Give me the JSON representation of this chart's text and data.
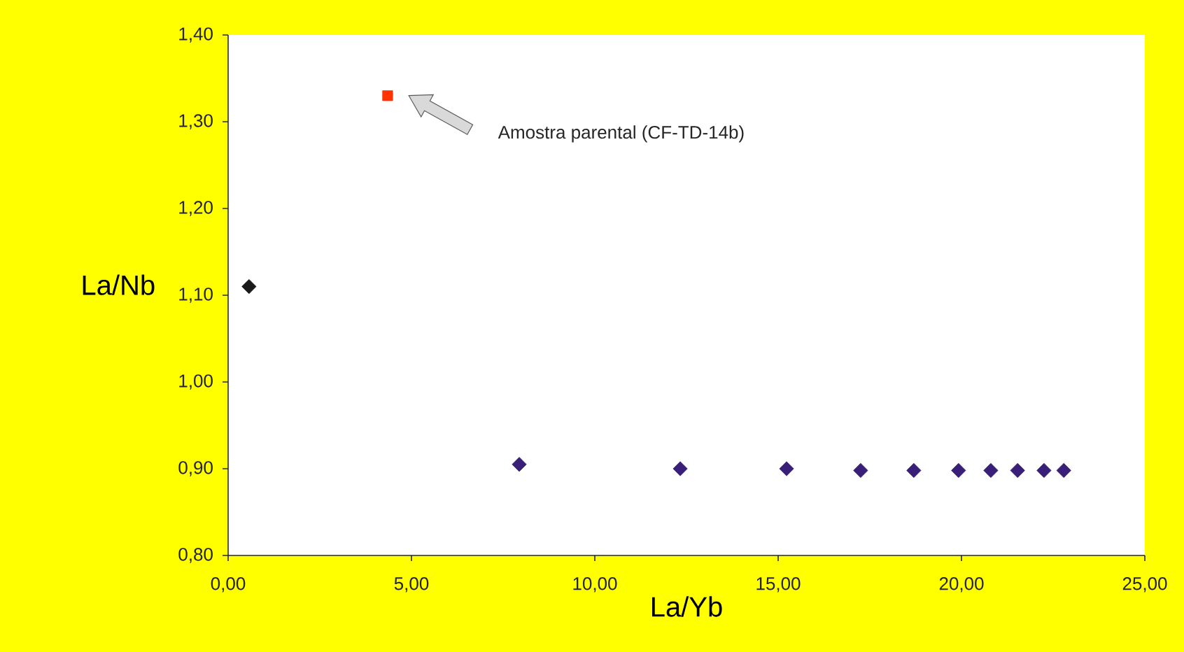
{
  "chart_data": {
    "type": "scatter",
    "xlabel": "La/Yb",
    "ylabel": "La/Nb",
    "xlim": [
      0,
      25
    ],
    "ylim": [
      0.8,
      1.4
    ],
    "xticks": [
      {
        "value": 0,
        "label": "0,00"
      },
      {
        "value": 5,
        "label": "5,00"
      },
      {
        "value": 10,
        "label": "10,00"
      },
      {
        "value": 15,
        "label": "15,00"
      },
      {
        "value": 20,
        "label": "20,00"
      },
      {
        "value": 25,
        "label": "25,00"
      }
    ],
    "yticks": [
      {
        "value": 0.8,
        "label": "0,80"
      },
      {
        "value": 0.9,
        "label": "0,90"
      },
      {
        "value": 1.0,
        "label": "1,00"
      },
      {
        "value": 1.1,
        "label": "1,10"
      },
      {
        "value": 1.2,
        "label": "1,20"
      },
      {
        "value": 1.3,
        "label": "1,30"
      },
      {
        "value": 1.4,
        "label": "1,40"
      }
    ],
    "series": [
      {
        "color": "#1a1a1a",
        "marker": "diamond",
        "x": [
          0.57
        ],
        "values": [
          1.11
        ]
      },
      {
        "color": "#ff3300",
        "marker": "square",
        "x": [
          4.35
        ],
        "values": [
          1.33
        ]
      },
      {
        "color": "#3a1f78",
        "marker": "diamond",
        "x": [
          7.94,
          12.33,
          15.23,
          17.25,
          18.7,
          19.92,
          20.8,
          21.53,
          22.25,
          22.79
        ],
        "values": [
          0.905,
          0.9,
          0.9,
          0.898,
          0.898,
          0.898,
          0.898,
          0.898,
          0.898,
          0.898
        ]
      }
    ],
    "annotations": [
      "Amostra parental (CF-TD-14b)"
    ]
  }
}
